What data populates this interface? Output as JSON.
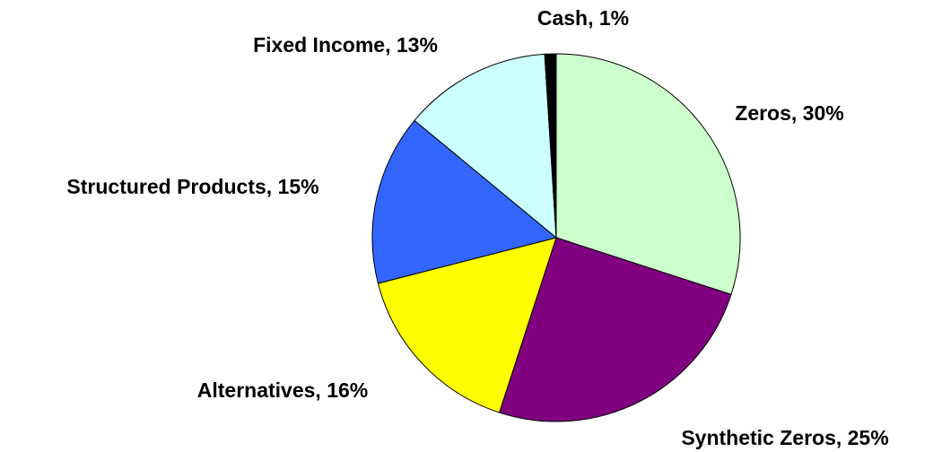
{
  "chart_data": {
    "type": "pie",
    "labels": [
      "Zeros, 30%",
      "Synthetic Zeros, 25%",
      "Alternatives, 16%",
      "Structured Products, 15%",
      "Fixed Income, 13%",
      "Cash, 1%"
    ],
    "values": [
      30,
      25,
      16,
      15,
      13,
      1
    ],
    "colors": [
      "#ccffcc",
      "#800080",
      "#ffff00",
      "#3366ff",
      "#ccffff",
      "#000000"
    ]
  }
}
